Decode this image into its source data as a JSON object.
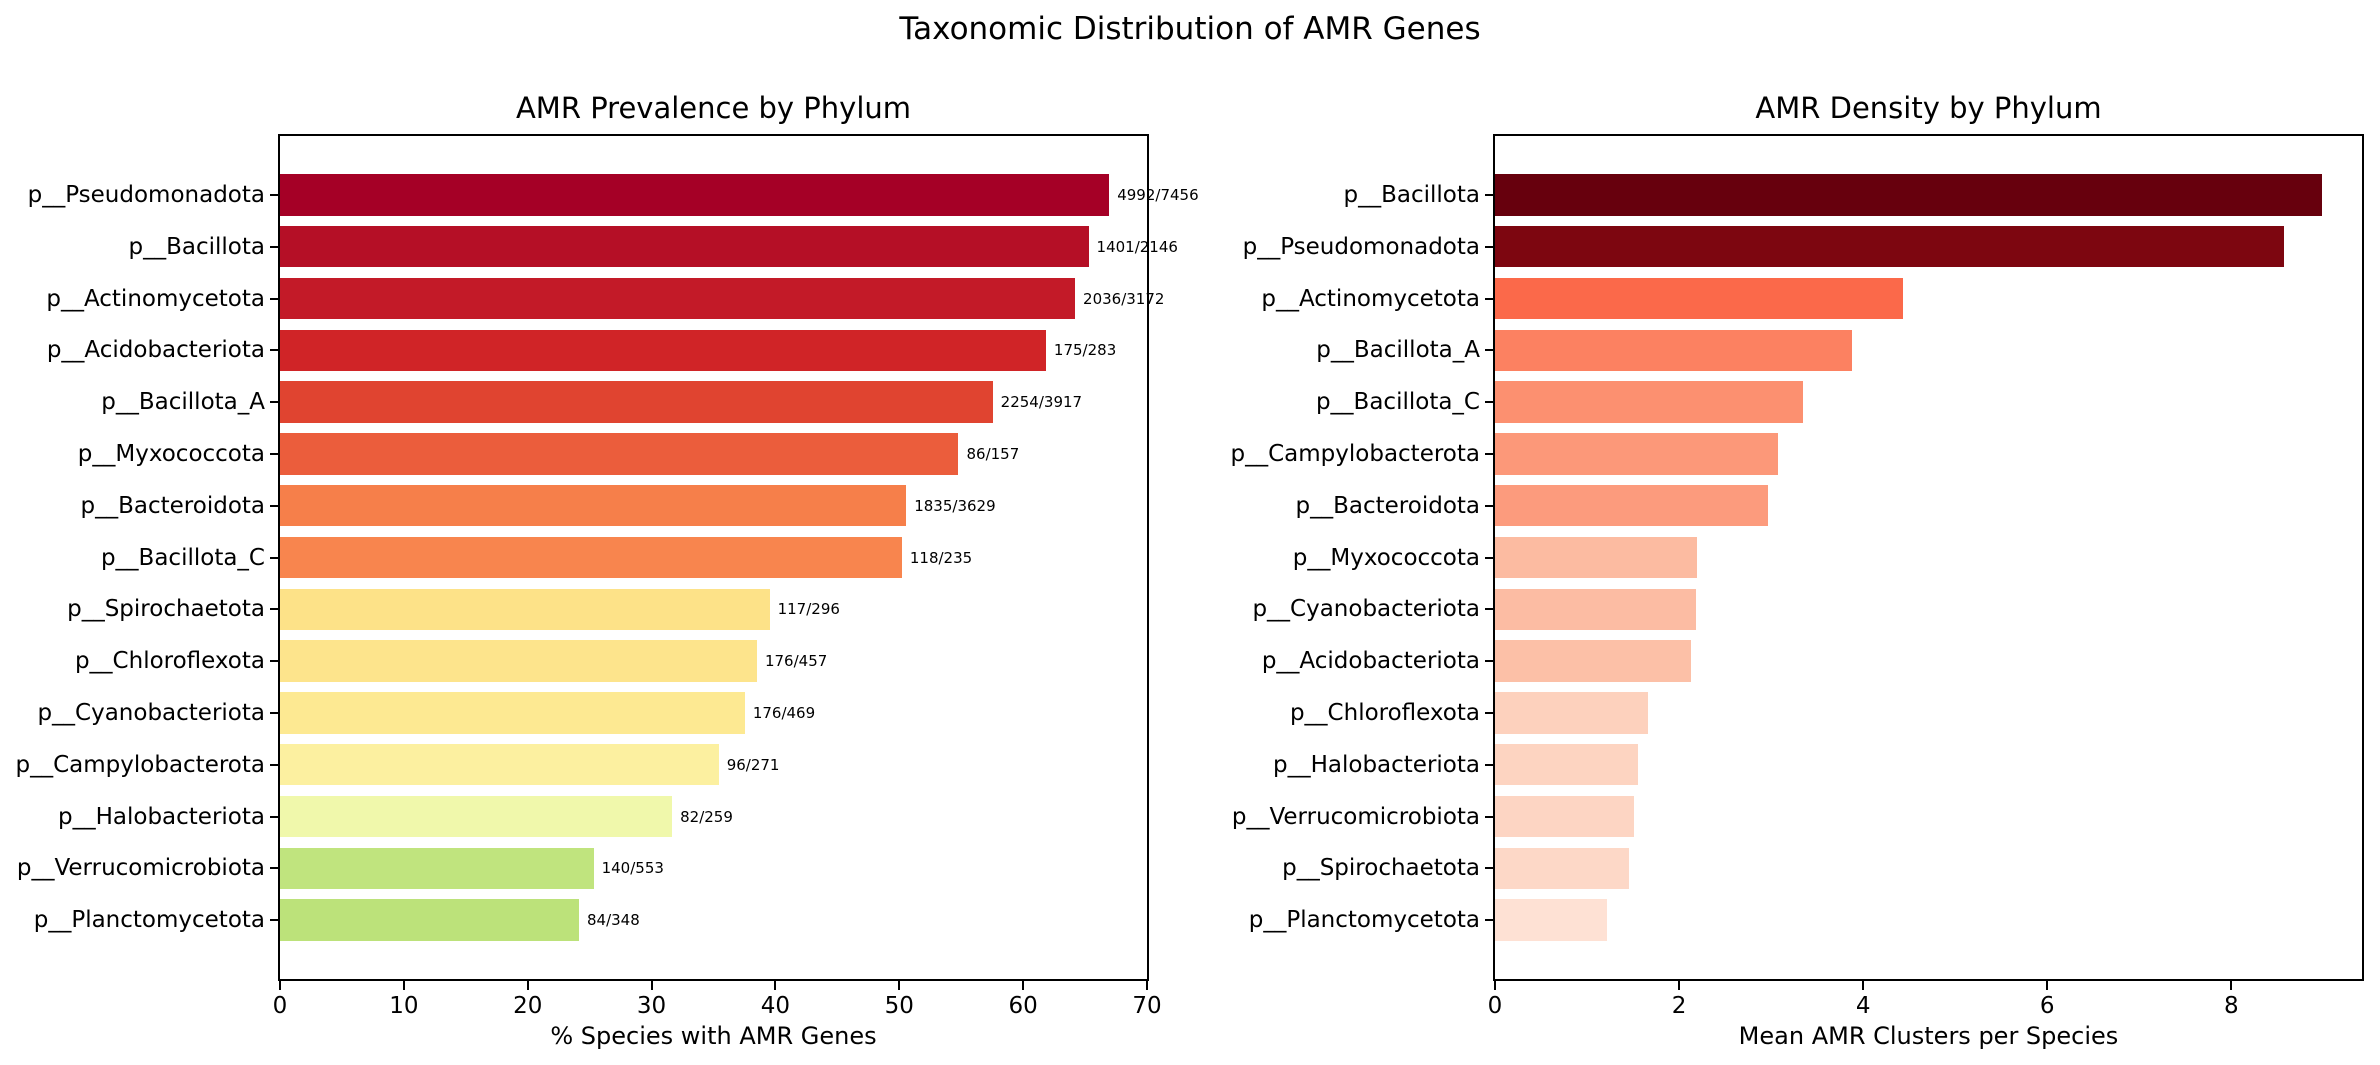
{
  "figure_title": "Taxonomic Distribution of AMR Genes",
  "chart_data": [
    {
      "type": "bar",
      "orientation": "horizontal",
      "title": "AMR Prevalence by Phylum",
      "xlabel": "% Species with AMR Genes",
      "xlim": [
        0,
        70
      ],
      "xticks": [
        0,
        10,
        20,
        30,
        40,
        50,
        60,
        70
      ],
      "grid": false,
      "legend": null,
      "categories": [
        "p__Pseudomonadota",
        "p__Bacillota",
        "p__Actinomycetota",
        "p__Acidobacteriota",
        "p__Bacillota_A",
        "p__Myxococcota",
        "p__Bacteroidota",
        "p__Bacillota_C",
        "p__Spirochaetota",
        "p__Chloroflexota",
        "p__Cyanobacteriota",
        "p__Campylobacterota",
        "p__Halobacteriota",
        "p__Verrucomicrobiota",
        "p__Planctomycetota"
      ],
      "values": [
        66.95,
        65.28,
        64.19,
        61.84,
        57.54,
        54.78,
        50.56,
        50.21,
        39.53,
        38.51,
        37.53,
        35.42,
        31.66,
        25.32,
        24.14
      ],
      "bar_labels": [
        "4992/7456",
        "1401/2146",
        "2036/3172",
        "175/283",
        "2254/3917",
        "86/157",
        "1835/3629",
        "118/235",
        "117/296",
        "176/457",
        "176/469",
        "96/271",
        "82/259",
        "140/553",
        "84/348"
      ],
      "bar_colors": [
        "#a50026",
        "#b50f26",
        "#c31a28",
        "#d02427",
        "#e04430",
        "#eb5d3c",
        "#f67f4a",
        "#f8854e",
        "#fde288",
        "#fde48c",
        "#fde992",
        "#fcf0a0",
        "#f0f8ab",
        "#c0e47e",
        "#bce27a"
      ]
    },
    {
      "type": "bar",
      "orientation": "horizontal",
      "title": "AMR Density by Phylum",
      "xlabel": "Mean AMR Clusters per Species",
      "xlim": [
        0,
        9.42
      ],
      "xticks": [
        0,
        2,
        4,
        6,
        8
      ],
      "grid": false,
      "legend": null,
      "categories": [
        "p__Bacillota",
        "p__Pseudomonadota",
        "p__Actinomycetota",
        "p__Bacillota_A",
        "p__Bacillota_C",
        "p__Campylobacterota",
        "p__Bacteroidota",
        "p__Myxococcota",
        "p__Cyanobacteriota",
        "p__Acidobacteriota",
        "p__Chloroflexota",
        "p__Halobacteriota",
        "p__Verrucomicrobiota",
        "p__Spirochaetota",
        "p__Planctomycetota"
      ],
      "values": [
        8.98,
        8.57,
        4.43,
        3.88,
        3.35,
        3.07,
        2.97,
        2.2,
        2.18,
        2.13,
        1.66,
        1.55,
        1.51,
        1.46,
        1.22
      ],
      "bar_labels": null,
      "bar_colors": [
        "#67000d",
        "#7d0610",
        "#fb694a",
        "#fc8161",
        "#fc9070",
        "#fc9879",
        "#fc9b7d",
        "#fcbba1",
        "#fcbca3",
        "#fcc0a7",
        "#fdd1bd",
        "#fdd4c1",
        "#fdd5c3",
        "#fdd8c7",
        "#fee1d4"
      ]
    }
  ]
}
